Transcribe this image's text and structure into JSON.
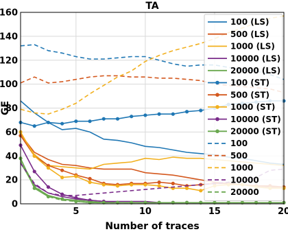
{
  "chart_data": {
    "type": "line",
    "title": "TA",
    "xlabel": "Number of traces",
    "ylabel": "GE",
    "xlim": [
      1,
      20
    ],
    "ylim": [
      0,
      160
    ],
    "x_ticks": [
      5,
      10,
      15,
      20
    ],
    "y_ticks": [
      0,
      20,
      40,
      60,
      80,
      100,
      120,
      140,
      160
    ],
    "grid": true,
    "legend_position": "top-right",
    "x": [
      1,
      2,
      3,
      4,
      5,
      6,
      7,
      8,
      9,
      10,
      11,
      12,
      13,
      14,
      15,
      16,
      17,
      18,
      19,
      20
    ],
    "series": [
      {
        "name": "100 (LS)",
        "color": "#1f77b4",
        "style": "solid",
        "marker": "none",
        "values": [
          86,
          76,
          68,
          62,
          63,
          60,
          54,
          53,
          51,
          48,
          47,
          45,
          43,
          42,
          41,
          39,
          38,
          36,
          34,
          33
        ]
      },
      {
        "name": "500 (LS)",
        "color": "#d4581e",
        "style": "solid",
        "marker": "none",
        "values": [
          58,
          43,
          37,
          33,
          32,
          30,
          29,
          29,
          29,
          26,
          25,
          24,
          22,
          20,
          18,
          17,
          16,
          15,
          14,
          14
        ]
      },
      {
        "name": "1000 (LS)",
        "color": "#f2b01e",
        "style": "solid",
        "marker": "none",
        "values": [
          59,
          41,
          32,
          31,
          30,
          29,
          33,
          34,
          35,
          38,
          37,
          39,
          38,
          38,
          37,
          36,
          35,
          34,
          33,
          32
        ]
      },
      {
        "name": "10000 (LS)",
        "color": "#7a2c8a",
        "style": "solid",
        "marker": "none",
        "values": [
          34,
          16,
          9,
          6,
          4,
          3,
          2,
          2,
          2,
          2,
          1,
          1,
          1,
          1,
          1,
          1,
          1,
          1,
          1,
          1
        ]
      },
      {
        "name": "20000 (LS)",
        "color": "#6aa84f",
        "style": "solid",
        "marker": "none",
        "values": [
          35,
          14,
          7,
          4,
          3,
          2,
          1,
          1,
          1,
          1,
          1,
          1,
          1,
          1,
          1,
          1,
          1,
          1,
          1,
          1
        ]
      },
      {
        "name": "100 (ST)",
        "color": "#1f77b4",
        "style": "solid",
        "marker": "circle",
        "values": [
          68,
          65,
          68,
          67,
          69,
          69,
          71,
          71,
          73,
          74,
          75,
          75,
          77,
          78,
          80,
          83,
          84,
          85,
          86,
          86
        ]
      },
      {
        "name": "500 (ST)",
        "color": "#d4581e",
        "style": "solid",
        "marker": "circle",
        "values": [
          57,
          40,
          32,
          28,
          24,
          21,
          17,
          16,
          17,
          17,
          18,
          17,
          15,
          16,
          17,
          17,
          16,
          15,
          15,
          14
        ]
      },
      {
        "name": "1000 (ST)",
        "color": "#f2b01e",
        "style": "solid",
        "marker": "circle",
        "values": [
          60,
          40,
          30,
          22,
          23,
          18,
          16,
          15,
          16,
          16,
          15,
          13,
          13,
          11,
          15,
          16,
          16,
          14,
          13,
          13
        ]
      },
      {
        "name": "10000 (ST)",
        "color": "#7a2c8a",
        "style": "solid",
        "marker": "circle",
        "values": [
          49,
          27,
          14,
          8,
          5,
          3,
          2,
          1,
          1,
          1,
          1,
          1,
          1,
          1,
          1,
          1,
          1,
          1,
          1,
          1
        ]
      },
      {
        "name": "20000 (ST)",
        "color": "#6aa84f",
        "style": "solid",
        "marker": "circle",
        "values": [
          38,
          13,
          6,
          4,
          2,
          1,
          1,
          1,
          1,
          1,
          1,
          1,
          1,
          1,
          1,
          1,
          1,
          1,
          1,
          1
        ]
      },
      {
        "name": "100",
        "color": "#1f77b4",
        "style": "dashed",
        "marker": "none",
        "values": [
          132,
          133,
          128,
          126,
          123,
          121,
          121,
          122,
          123,
          123,
          120,
          117,
          115,
          116,
          116,
          114,
          112,
          111,
          108,
          104
        ]
      },
      {
        "name": "500",
        "color": "#d4581e",
        "style": "dashed",
        "marker": "none",
        "values": [
          101,
          106,
          101,
          102,
          104,
          106,
          107,
          107,
          106,
          106,
          105,
          105,
          104,
          103,
          100,
          99,
          98,
          97,
          96,
          93
        ]
      },
      {
        "name": "1000",
        "color": "#f2b01e",
        "style": "dashed",
        "marker": "none",
        "values": [
          79,
          76,
          75,
          79,
          84,
          92,
          99,
          106,
          111,
          119,
          124,
          128,
          131,
          134,
          138,
          143,
          147,
          151,
          155,
          157
        ]
      },
      {
        "name": "10000",
        "color": "#7a2c8a",
        "style": "dashed",
        "marker": "none",
        "values": [
          34,
          17,
          9,
          7,
          7,
          8,
          9,
          10,
          11,
          12,
          13,
          14,
          15,
          16,
          17,
          18,
          19,
          22,
          28,
          29
        ]
      },
      {
        "name": "20000",
        "color": "#6aa84f",
        "style": "dashed",
        "marker": "none",
        "values": [
          37,
          15,
          6,
          3,
          2,
          1,
          1,
          1,
          1,
          1,
          1,
          1,
          1,
          1,
          1,
          1,
          1,
          1,
          1,
          1
        ]
      }
    ]
  }
}
